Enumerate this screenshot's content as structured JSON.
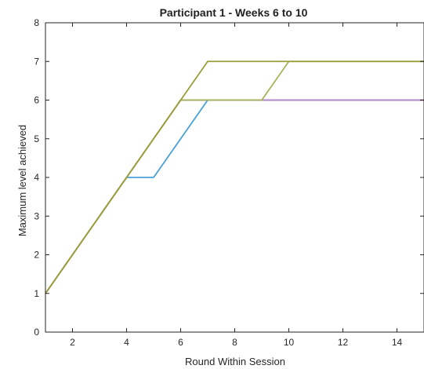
{
  "chart_data": {
    "type": "line",
    "title": "Participant 1 - Weeks 6 to 10",
    "xlabel": "Round Within Session",
    "ylabel": "Maximum level achieved",
    "xlim": [
      1,
      15
    ],
    "ylim": [
      0,
      8
    ],
    "xticks": [
      2,
      4,
      6,
      8,
      10,
      12,
      14
    ],
    "yticks": [
      0,
      1,
      2,
      3,
      4,
      5,
      6,
      7,
      8
    ],
    "grid": false,
    "series": [
      {
        "color": "#4aa0d8",
        "x": [
          1,
          4,
          5,
          7,
          15
        ],
        "y": [
          1,
          4,
          4,
          6,
          6
        ]
      },
      {
        "color": "#c85a3a",
        "x": [
          1,
          6,
          15
        ],
        "y": [
          1,
          6,
          6
        ]
      },
      {
        "color": "#b38ad4",
        "x": [
          1,
          6,
          15
        ],
        "y": [
          1,
          6,
          6
        ]
      },
      {
        "color": "#a9b45a",
        "x": [
          1,
          6,
          9,
          10,
          15
        ],
        "y": [
          1,
          6,
          6,
          7,
          7
        ]
      },
      {
        "color": "#9a9e3a",
        "x": [
          1,
          7,
          15
        ],
        "y": [
          1,
          7,
          7
        ]
      }
    ]
  }
}
